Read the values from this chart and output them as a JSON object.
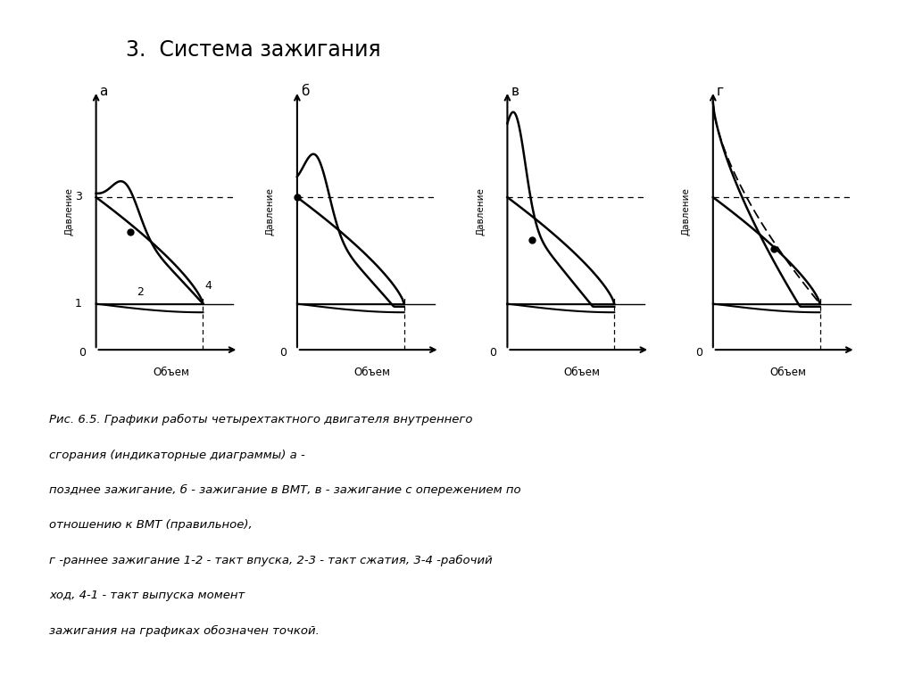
{
  "title": "3.  Система зажигания",
  "title_bg": "#aad8e0",
  "background": "#ffffff",
  "caption_line1": "Рис. 6.5. Графики работы четырехтактного двигателя внутреннего",
  "caption_line2": "сгорания (индикаторные диаграммы) а -",
  "caption_line3": "позднее зажигание, б - зажигание в ВМТ, в - зажигание с опережением по",
  "caption_line4": "отношению к ВМТ (правильное),",
  "caption_line5": "г -раннее зажигание 1-2 - такт впуска, 2-3 - такт сжатия, 3-4 -рабочий",
  "caption_line6": "ход, 4-1 - такт выпуска момент",
  "caption_line7": "зажигания на графиках обозначен точкой."
}
